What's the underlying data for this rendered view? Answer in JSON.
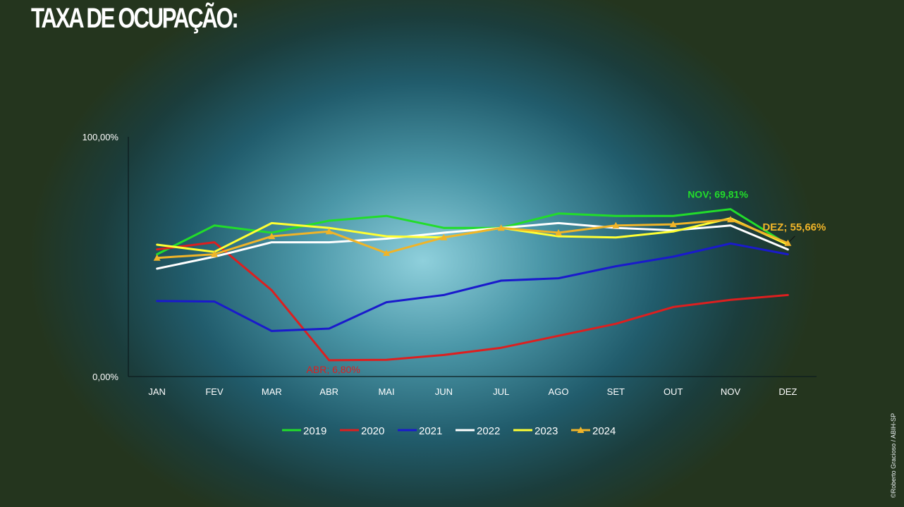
{
  "title": "TAXA DE OCUPAÇÃO:",
  "credit": "©Roberto Gracioso / ABIH-SP",
  "chart_data": {
    "type": "line",
    "categories": [
      "JAN",
      "FEV",
      "MAR",
      "ABR",
      "MAI",
      "JUN",
      "JUL",
      "AGO",
      "SET",
      "OUT",
      "NOV",
      "DEZ"
    ],
    "ylim": [
      0,
      100
    ],
    "yticks": [
      "0,00%",
      "100,00%"
    ],
    "legend_position": "bottom",
    "series": [
      {
        "name": "2019",
        "color": "#22dd2a",
        "values": [
          51,
          63,
          60,
          65,
          67,
          62,
          62,
          68,
          67,
          67,
          69.81,
          55
        ],
        "marker": "none"
      },
      {
        "name": "2020",
        "color": "#dd1f1f",
        "values": [
          53,
          56,
          36,
          6.8,
          7,
          9,
          12,
          17,
          22,
          29,
          32,
          34
        ],
        "marker": "none"
      },
      {
        "name": "2021",
        "color": "#1a1acc",
        "values": [
          31.5,
          31.3,
          19,
          20,
          31,
          34,
          40,
          41,
          46,
          50,
          55.5,
          51
        ],
        "marker": "none"
      },
      {
        "name": "2022",
        "color": "#ffffff",
        "values": [
          45,
          50,
          56,
          56,
          57.5,
          60,
          62,
          64,
          62,
          61,
          63,
          53
        ],
        "marker": "none"
      },
      {
        "name": "2023",
        "color": "#ffff33",
        "values": [
          55,
          52,
          64,
          62,
          58.5,
          58,
          62,
          58.5,
          58,
          60.5,
          66,
          55
        ],
        "marker": "none"
      },
      {
        "name": "2024",
        "color": "#f0b428",
        "values": [
          49.5,
          51,
          58.5,
          60.5,
          51.5,
          58,
          62,
          60,
          63,
          63.5,
          65.5,
          55.66
        ],
        "marker": "triangle"
      }
    ],
    "annotations": [
      {
        "text": "NOV; 69,81%",
        "series": "2019",
        "category": "NOV",
        "color": "#22dd2a"
      },
      {
        "text": "ABR; 6,80%",
        "series": "2020",
        "category": "ABR",
        "color": "#dd1f1f"
      },
      {
        "text": "DEZ; 55,66%",
        "series": "2024",
        "category": "DEZ",
        "color": "#f0b428"
      }
    ]
  }
}
